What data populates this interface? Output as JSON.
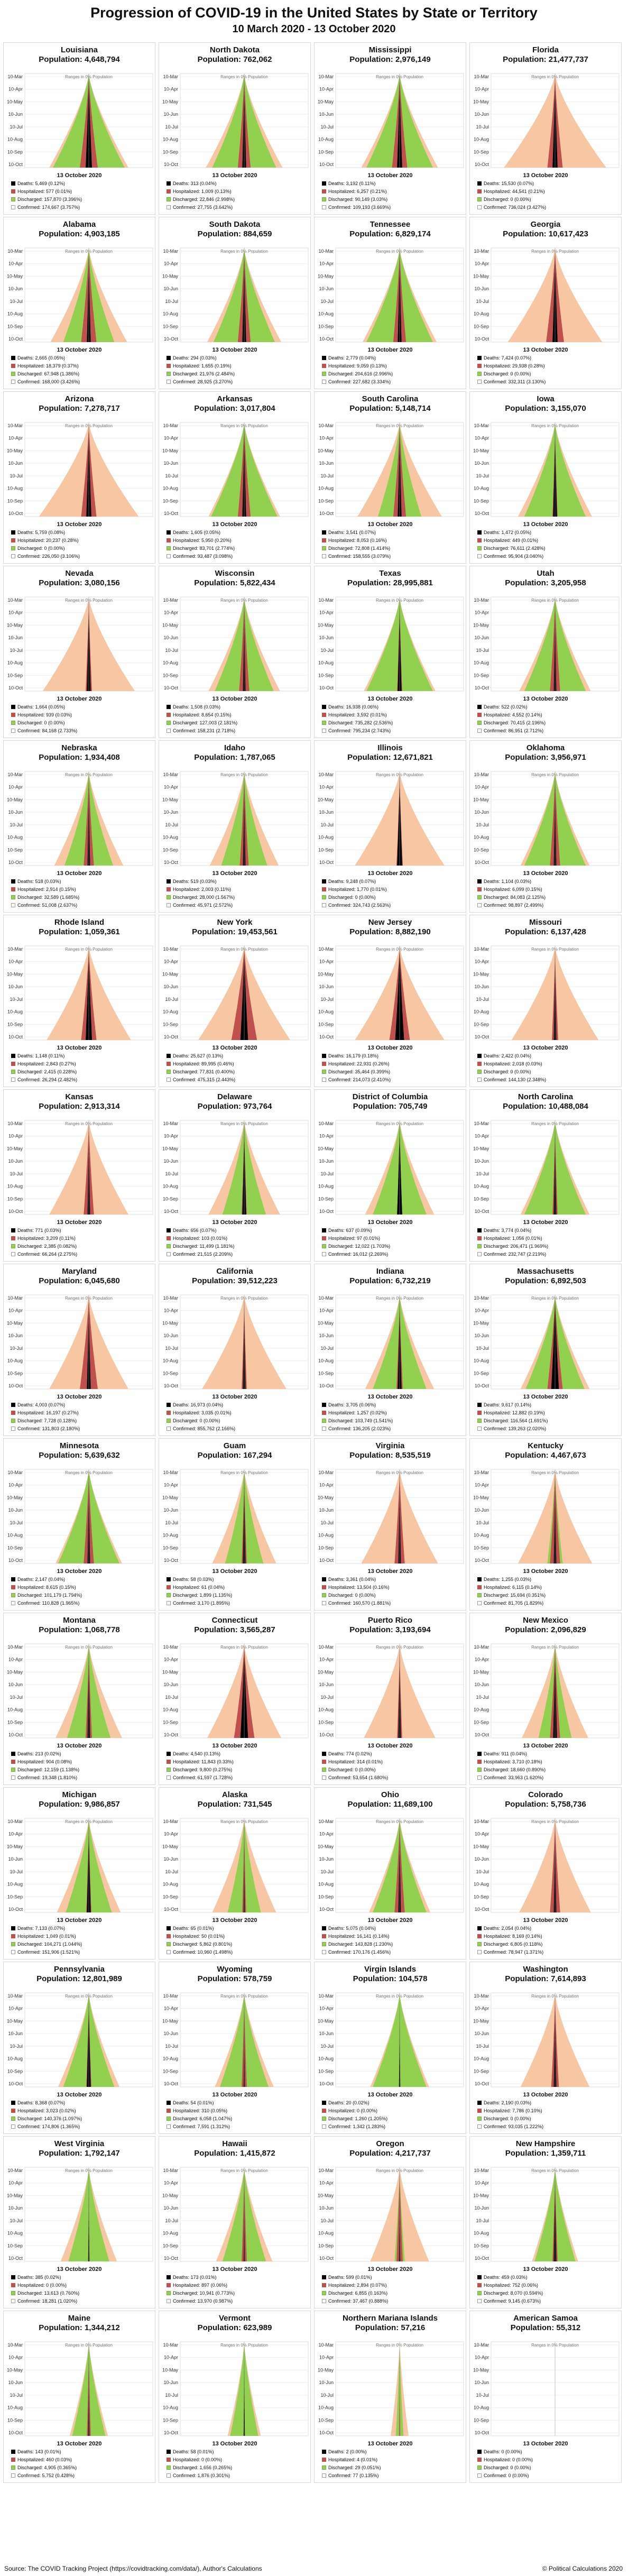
{
  "header": {
    "title": "Progression of COVID-19 in the United States by State or Territory",
    "date_range": "10 March 2020 - 13 October 2020"
  },
  "footer": {
    "source": "Source: The COVID Tracking Project (https://covidtracking.com/data/), Author's Calculations",
    "copyright": "© Political Calculations 2020"
  },
  "colors": {
    "confirmed": "#f7c6a3",
    "discharged": "#92d050",
    "hospitalized": "#c0504d",
    "deaths": "#000000"
  },
  "chart_data": {
    "type": "area",
    "orientation": "horizontal-mirrored",
    "date_label": "13 October 2020",
    "axis_guide": "Ranges in 0% Population",
    "y_ticks": [
      "10-Mar",
      "10-Apr",
      "10-May",
      "10-Jun",
      "10-Jul",
      "10-Aug",
      "10-Sep",
      "10-Oct"
    ],
    "legend": [
      "Deaths",
      "Hospitalized",
      "Discharged",
      "Confirmed"
    ],
    "panels": [
      {
        "name": "Louisiana",
        "population": "Population: 4,648,794",
        "deaths": "5,469 (0.12%)",
        "hospitalized": "577 (0.01%)",
        "discharged": "157,870 (3.396%)",
        "confirmed": "174,667 (3.757%)",
        "c": 0.62,
        "s": 0.56,
        "h": 0.14,
        "d": 0.05
      },
      {
        "name": "North Dakota",
        "population": "Population: 762,062",
        "deaths": "313 (0.04%)",
        "hospitalized": "1,009 (0.13%)",
        "discharged": "22,846 (2.998%)",
        "confirmed": "27,755 (3.642%)",
        "c": 0.6,
        "s": 0.5,
        "h": 0.1,
        "d": 0.03
      },
      {
        "name": "Mississippi",
        "population": "Population: 2,976,149",
        "deaths": "3,192 (0.11%)",
        "hospitalized": "6,257 (0.21%)",
        "discharged": "90,149 (3.03%)",
        "confirmed": "109,193 (3.669%)",
        "c": 0.6,
        "s": 0.52,
        "h": 0.12,
        "d": 0.04
      },
      {
        "name": "Florida",
        "population": "Population: 21,477,737",
        "deaths": "15,530 (0.07%)",
        "hospitalized": "44,541 (0.21%)",
        "discharged": "0 (0.00%)",
        "confirmed": "736,024 (3.427%)",
        "c": 0.8,
        "s": 0.0,
        "h": 0.12,
        "d": 0.04
      },
      {
        "name": "Alabama",
        "population": "Population: 4,903,185",
        "deaths": "2,665 (0.05%)",
        "hospitalized": "18,379 (0.37%)",
        "discharged": "67,948 (1.386%)",
        "confirmed": "168,000 (3.426%)",
        "c": 0.6,
        "s": 0.4,
        "h": 0.12,
        "d": 0.03
      },
      {
        "name": "South Dakota",
        "population": "Population: 884,659",
        "deaths": "294 (0.03%)",
        "hospitalized": "1,655 (0.19%)",
        "discharged": "21,976 (2.484%)",
        "confirmed": "28,925 (3.270%)",
        "c": 0.58,
        "s": 0.48,
        "h": 0.1,
        "d": 0.03
      },
      {
        "name": "Tennessee",
        "population": "Population: 6,829,174",
        "deaths": "2,779 (0.04%)",
        "hospitalized": "9,059 (0.13%)",
        "discharged": "204,616 (2.996%)",
        "confirmed": "227,682 (3.334%)",
        "c": 0.58,
        "s": 0.52,
        "h": 0.1,
        "d": 0.03
      },
      {
        "name": "Georgia",
        "population": "Population: 10,617,423",
        "deaths": "7,424 (0.07%)",
        "hospitalized": "29,938 (0.28%)",
        "discharged": "0 (0.00%)",
        "confirmed": "332,311 (3.130%)",
        "c": 0.74,
        "s": 0.0,
        "h": 0.14,
        "d": 0.04
      },
      {
        "name": "Arizona",
        "population": "Population: 7,278,717",
        "deaths": "5,759 (0.08%)",
        "hospitalized": "20,237 (0.28%)",
        "discharged": "0 (0.00%)",
        "confirmed": "226,050 (3.106%)",
        "c": 0.78,
        "s": 0.0,
        "h": 0.12,
        "d": 0.04
      },
      {
        "name": "Arkansas",
        "population": "Population: 3,017,804",
        "deaths": "1,605 (0.05%)",
        "hospitalized": "5,950 (0.20%)",
        "discharged": "83,701 (2.774%)",
        "confirmed": "93,487 (3.098%)",
        "c": 0.56,
        "s": 0.52,
        "h": 0.1,
        "d": 0.03
      },
      {
        "name": "South Carolina",
        "population": "Population: 5,148,714",
        "deaths": "3,541 (0.07%)",
        "hospitalized": "8,053 (0.16%)",
        "discharged": "72,808 (1.414%)",
        "confirmed": "158,555 (3.079%)",
        "c": 0.66,
        "s": 0.34,
        "h": 0.1,
        "d": 0.03
      },
      {
        "name": "Iowa",
        "population": "Population: 3,155,070",
        "deaths": "1,472 (0.05%)",
        "hospitalized": "449 (0.01%)",
        "discharged": "76,611 (2.428%)",
        "confirmed": "95,904 (3.040%)",
        "c": 0.58,
        "s": 0.48,
        "h": 0.04,
        "d": 0.03
      },
      {
        "name": "Nevada",
        "population": "Population: 3,080,156",
        "deaths": "1,664 (0.05%)",
        "hospitalized": "939 (0.03%)",
        "discharged": "0 (0.00%)",
        "confirmed": "84,168 (2.733%)",
        "c": 0.72,
        "s": 0.0,
        "h": 0.05,
        "d": 0.03
      },
      {
        "name": "Wisconsin",
        "population": "Population: 5,822,434",
        "deaths": "1,508 (0.03%)",
        "hospitalized": "8,654 (0.15%)",
        "discharged": "127,003 (2.181%)",
        "confirmed": "158,231 (2.718%)",
        "c": 0.56,
        "s": 0.46,
        "h": 0.08,
        "d": 0.02
      },
      {
        "name": "Texas",
        "population": "Population: 28,995,881",
        "deaths": "16,938 (0.06%)",
        "hospitalized": "3,592 (0.01%)",
        "discharged": "735,282 (2.536%)",
        "confirmed": "795,234 (2.743%)",
        "c": 0.56,
        "s": 0.52,
        "h": 0.04,
        "d": 0.03
      },
      {
        "name": "Utah",
        "population": "Population: 3,205,958",
        "deaths": "522 (0.02%)",
        "hospitalized": "4,552 (0.14%)",
        "discharged": "70,415 (2.196%)",
        "confirmed": "86,951 (2.712%)",
        "c": 0.56,
        "s": 0.48,
        "h": 0.08,
        "d": 0.02
      },
      {
        "name": "Nebraska",
        "population": "Population: 1,934,408",
        "deaths": "518 (0.03%)",
        "hospitalized": "2,914 (0.15%)",
        "discharged": "32,589 (1.685%)",
        "confirmed": "51,008 (2.637%)",
        "c": 0.54,
        "s": 0.38,
        "h": 0.08,
        "d": 0.02
      },
      {
        "name": "Idaho",
        "population": "Population: 1,787,065",
        "deaths": "519 (0.03%)",
        "hospitalized": "2,003 (0.11%)",
        "discharged": "28,000 (1.567%)",
        "confirmed": "45,971 (2.572%)",
        "c": 0.54,
        "s": 0.36,
        "h": 0.07,
        "d": 0.02
      },
      {
        "name": "Illinois",
        "population": "Population: 12,671,821",
        "deaths": "9,248 (0.07%)",
        "hospitalized": "1,770 (0.01%)",
        "discharged": "0 (0.00%)",
        "confirmed": "324,743 (2.563%)",
        "c": 0.7,
        "s": 0.0,
        "h": 0.05,
        "d": 0.04
      },
      {
        "name": "Oklahoma",
        "population": "Population: 3,956,971",
        "deaths": "1,104 (0.03%)",
        "hospitalized": "6,099 (0.15%)",
        "discharged": "84,083 (2.125%)",
        "confirmed": "98,897 (2.499%)",
        "c": 0.54,
        "s": 0.48,
        "h": 0.08,
        "d": 0.02
      },
      {
        "name": "Rhode Island",
        "population": "Population: 1,059,361",
        "deaths": "1,148 (0.11%)",
        "hospitalized": "2,843 (0.27%)",
        "discharged": "2,415 (0.228%)",
        "confirmed": "26,294 (2.482%)",
        "c": 0.66,
        "s": 0.08,
        "h": 0.12,
        "d": 0.05
      },
      {
        "name": "New York",
        "population": "Population: 19,453,561",
        "deaths": "25,627 (0.13%)",
        "hospitalized": "89,995 (0.46%)",
        "discharged": "77,831 (0.400%)",
        "confirmed": "475,315 (2.443%)",
        "c": 0.72,
        "s": 0.16,
        "h": 0.2,
        "d": 0.06
      },
      {
        "name": "New Jersey",
        "population": "Population: 8,882,190",
        "deaths": "16,179 (0.18%)",
        "hospitalized": "22,931 (0.26%)",
        "discharged": "35,464 (0.399%)",
        "confirmed": "214,073 (2.410%)",
        "c": 0.7,
        "s": 0.16,
        "h": 0.16,
        "d": 0.07
      },
      {
        "name": "Missouri",
        "population": "Population: 6,137,428",
        "deaths": "2,422 (0.04%)",
        "hospitalized": "2,018 (0.03%)",
        "discharged": "0 (0.00%)",
        "confirmed": "144,130 (2.348%)",
        "c": 0.68,
        "s": 0.0,
        "h": 0.05,
        "d": 0.02
      },
      {
        "name": "Kansas",
        "population": "Population: 2,913,314",
        "deaths": "771 (0.03%)",
        "hospitalized": "3,209 (0.11%)",
        "discharged": "2,385 (0.082%)",
        "confirmed": "66,264 (2.275%)",
        "c": 0.62,
        "s": 0.06,
        "h": 0.08,
        "d": 0.02
      },
      {
        "name": "Delaware",
        "population": "Population: 973,764",
        "deaths": "656 (0.07%)",
        "hospitalized": "103 (0.01%)",
        "discharged": "11,499 (1.181%)",
        "confirmed": "21,515 (2.209%)",
        "c": 0.56,
        "s": 0.34,
        "h": 0.04,
        "d": 0.03
      },
      {
        "name": "District of Columbia",
        "population": "Population: 705,749",
        "deaths": "637 (0.09%)",
        "hospitalized": "97 (0.01%)",
        "discharged": "12,022 (1.703%)",
        "confirmed": "16,012 (2.269%)",
        "c": 0.54,
        "s": 0.42,
        "h": 0.04,
        "d": 0.04
      },
      {
        "name": "North Carolina",
        "population": "Population: 10,488,084",
        "deaths": "3,774 (0.04%)",
        "hospitalized": "1,056 (0.01%)",
        "discharged": "206,471 (1.969%)",
        "confirmed": "232,747 (2.219%)",
        "c": 0.54,
        "s": 0.48,
        "h": 0.04,
        "d": 0.02
      },
      {
        "name": "Maryland",
        "population": "Population: 6,045,680",
        "deaths": "4,003 (0.07%)",
        "hospitalized": "16,197 (0.27%)",
        "discharged": "7,728 (0.128%)",
        "confirmed": "131,803 (2.180%)",
        "c": 0.62,
        "s": 0.08,
        "h": 0.14,
        "d": 0.03
      },
      {
        "name": "California",
        "population": "Population: 39,512,223",
        "deaths": "16,973 (0.04%)",
        "hospitalized": "3,035 (0.01%)",
        "discharged": "0 (0.00%)",
        "confirmed": "855,762 (2.166%)",
        "c": 0.66,
        "s": 0.0,
        "h": 0.04,
        "d": 0.02
      },
      {
        "name": "Indiana",
        "population": "Population: 6,732,219",
        "deaths": "3,705 (0.06%)",
        "hospitalized": "1,257 (0.02%)",
        "discharged": "103,749 (1.541%)",
        "confirmed": "136,205 (2.023%)",
        "c": 0.54,
        "s": 0.42,
        "h": 0.05,
        "d": 0.03
      },
      {
        "name": "Massachusetts",
        "population": "Population: 6,892,503",
        "deaths": "9,617 (0.14%)",
        "hospitalized": "12,882 (0.19%)",
        "discharged": "116,564 (1.691%)",
        "confirmed": "139,263 (2.020%)",
        "c": 0.54,
        "s": 0.46,
        "h": 0.12,
        "d": 0.06
      },
      {
        "name": "Minnesota",
        "population": "Population: 5,639,632",
        "deaths": "2,147 (0.04%)",
        "hospitalized": "8,615 (0.15%)",
        "discharged": "101,179 (1.794%)",
        "confirmed": "110,828 (1.965%)",
        "c": 0.52,
        "s": 0.48,
        "h": 0.08,
        "d": 0.02
      },
      {
        "name": "Guam",
        "population": "Population: 167,294",
        "deaths": "58 (0.03%)",
        "hospitalized": "61 (0.04%)",
        "discharged": "1,899 (1.135%)",
        "confirmed": "3,170 (1.895%)",
        "c": 0.5,
        "s": 0.3,
        "h": 0.04,
        "d": 0.02
      },
      {
        "name": "Virginia",
        "population": "Population: 8,535,519",
        "deaths": "3,361 (0.04%)",
        "hospitalized": "13,504 (0.16%)",
        "discharged": "0 (0.00%)",
        "confirmed": "160,570 (1.881%)",
        "c": 0.6,
        "s": 0.0,
        "h": 0.08,
        "d": 0.02
      },
      {
        "name": "Kentucky",
        "population": "Population: 4,467,673",
        "deaths": "1,255 (0.03%)",
        "hospitalized": "6,115 (0.14%)",
        "discharged": "15,694 (0.351%)",
        "confirmed": "81,705 (1.829%)",
        "c": 0.58,
        "s": 0.12,
        "h": 0.08,
        "d": 0.02
      },
      {
        "name": "Montana",
        "population": "Population: 1,068,778",
        "deaths": "213 (0.02%)",
        "hospitalized": "904 (0.08%)",
        "discharged": "12,159 (1.138%)",
        "confirmed": "19,348 (1.810%)",
        "c": 0.52,
        "s": 0.34,
        "h": 0.05,
        "d": 0.02
      },
      {
        "name": "Connecticut",
        "population": "Population: 3,565,287",
        "deaths": "4,540 (0.13%)",
        "hospitalized": "11,843 (0.33%)",
        "discharged": "9,800 (0.275%)",
        "confirmed": "61,597 (1.728%)",
        "c": 0.58,
        "s": 0.12,
        "h": 0.16,
        "d": 0.06
      },
      {
        "name": "Puerto Rico",
        "population": "Population: 3,193,694",
        "deaths": "774 (0.02%)",
        "hospitalized": "314 (0.01%)",
        "discharged": "0 (0.00%)",
        "confirmed": "53,654 (1.680%)",
        "c": 0.56,
        "s": 0.0,
        "h": 0.04,
        "d": 0.02
      },
      {
        "name": "New Mexico",
        "population": "Population: 2,096,829",
        "deaths": "911 (0.04%)",
        "hospitalized": "3,710 (0.18%)",
        "discharged": "18,660 (0.890%)",
        "confirmed": "33,963 (1.620%)",
        "c": 0.52,
        "s": 0.26,
        "h": 0.08,
        "d": 0.03
      },
      {
        "name": "Michigan",
        "population": "Population: 9,986,857",
        "deaths": "7,133 (0.07%)",
        "hospitalized": "1,049 (0.01%)",
        "discharged": "104,271 (1.044%)",
        "confirmed": "151,906 (1.521%)",
        "c": 0.5,
        "s": 0.36,
        "h": 0.04,
        "d": 0.03
      },
      {
        "name": "Alaska",
        "population": "Population: 731,545",
        "deaths": "65 (0.01%)",
        "hospitalized": "50 (0.01%)",
        "discharged": "5,862 (0.801%)",
        "confirmed": "10,960 (1.498%)",
        "c": 0.5,
        "s": 0.26,
        "h": 0.03,
        "d": 0.01
      },
      {
        "name": "Ohio",
        "population": "Population: 11,689,100",
        "deaths": "5,075 (0.04%)",
        "hospitalized": "16,141 (0.14%)",
        "discharged": "143,828 (1.230%)",
        "confirmed": "170,176 (1.456%)",
        "c": 0.48,
        "s": 0.42,
        "h": 0.08,
        "d": 0.02
      },
      {
        "name": "Colorado",
        "population": "Population: 5,758,736",
        "deaths": "2,054 (0.04%)",
        "hospitalized": "8,169 (0.14%)",
        "discharged": "6,805 (0.118%)",
        "confirmed": "78,947 (1.371%)",
        "c": 0.56,
        "s": 0.06,
        "h": 0.08,
        "d": 0.02
      },
      {
        "name": "Pennsylvania",
        "population": "Population: 12,801,989",
        "deaths": "8,368 (0.07%)",
        "hospitalized": "3,023 (0.02%)",
        "discharged": "140,376 (1.097%)",
        "confirmed": "174,806 (1.365%)",
        "c": 0.48,
        "s": 0.4,
        "h": 0.04,
        "d": 0.03
      },
      {
        "name": "Wyoming",
        "population": "Population: 578,759",
        "deaths": "54 (0.01%)",
        "hospitalized": "310 (0.05%)",
        "discharged": "6,058 (1.047%)",
        "confirmed": "7,591 (1.312%)",
        "c": 0.46,
        "s": 0.38,
        "h": 0.04,
        "d": 0.01
      },
      {
        "name": "Virgin Islands",
        "population": "Population: 104,578",
        "deaths": "20 (0.02%)",
        "hospitalized": "0 (0.00%)",
        "discharged": "1,260 (1.205%)",
        "confirmed": "1,342 (1.283%)",
        "c": 0.46,
        "s": 0.42,
        "h": 0.0,
        "d": 0.01
      },
      {
        "name": "Washington",
        "population": "Population: 7,614,893",
        "deaths": "2,190 (0.03%)",
        "hospitalized": "7,786 (0.10%)",
        "discharged": "0 (0.00%)",
        "confirmed": "93,035 (1.222%)",
        "c": 0.54,
        "s": 0.0,
        "h": 0.06,
        "d": 0.02
      },
      {
        "name": "West Virginia",
        "population": "Population: 1,792,147",
        "deaths": "385 (0.02%)",
        "hospitalized": "0 (0.00%)",
        "discharged": "13,613 (0.760%)",
        "confirmed": "18,281 (1.020%)",
        "c": 0.44,
        "s": 0.32,
        "h": 0.0,
        "d": 0.01
      },
      {
        "name": "Hawaii",
        "population": "Population: 1,415,872",
        "deaths": "173 (0.01%)",
        "hospitalized": "897 (0.06%)",
        "discharged": "10,941 (0.773%)",
        "confirmed": "13,970 (0.987%)",
        "c": 0.44,
        "s": 0.34,
        "h": 0.04,
        "d": 0.01
      },
      {
        "name": "Oregon",
        "population": "Population: 4,217,737",
        "deaths": "599 (0.01%)",
        "hospitalized": "2,894 (0.07%)",
        "discharged": "6,855 (0.163%)",
        "confirmed": "37,467 (0.888%)",
        "c": 0.46,
        "s": 0.08,
        "h": 0.05,
        "d": 0.01
      },
      {
        "name": "New Hampshire",
        "population": "Population: 1,359,711",
        "deaths": "459 (0.03%)",
        "hospitalized": "752 (0.06%)",
        "discharged": "8,070 (0.594%)",
        "confirmed": "9,145 (0.673%)",
        "c": 0.36,
        "s": 0.32,
        "h": 0.04,
        "d": 0.02
      },
      {
        "name": "Maine",
        "population": "Population: 1,344,212",
        "deaths": "143 (0.01%)",
        "hospitalized": "460 (0.03%)",
        "discharged": "4,905 (0.365%)",
        "confirmed": "5,752 (0.428%)",
        "c": 0.3,
        "s": 0.26,
        "h": 0.03,
        "d": 0.01
      },
      {
        "name": "Vermont",
        "population": "Population: 623,989",
        "deaths": "58 (0.01%)",
        "hospitalized": "0 (0.00%)",
        "discharged": "1,656 (0.265%)",
        "confirmed": "1,876 (0.301%)",
        "c": 0.26,
        "s": 0.22,
        "h": 0.0,
        "d": 0.01
      },
      {
        "name": "Northern Mariana Islands",
        "population": "Population: 57,216",
        "deaths": "2 (0.00%)",
        "hospitalized": "4 (0.01%)",
        "discharged": "29 (0.051%)",
        "confirmed": "77 (0.135%)",
        "c": 0.14,
        "s": 0.06,
        "h": 0.01,
        "d": 0.0
      },
      {
        "name": "American Samoa",
        "population": "Population: 55,312",
        "deaths": "0 (0.00%)",
        "hospitalized": "0 (0.00%)",
        "discharged": "0 (0.00%)",
        "confirmed": "0 (0.00%)",
        "c": 0.0,
        "s": 0.0,
        "h": 0.0,
        "d": 0.0
      }
    ]
  }
}
